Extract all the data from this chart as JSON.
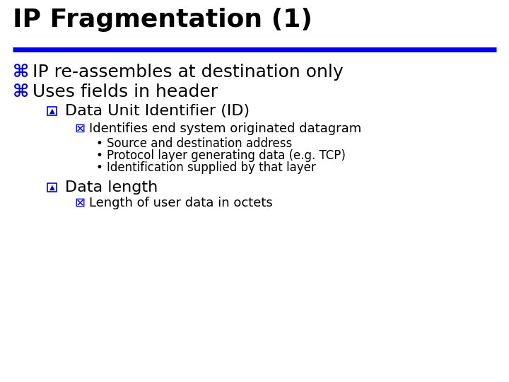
{
  "title": "IP Fragmentation (1)",
  "title_color": "#000000",
  "title_fontsize": 26,
  "line_color": "#0000EE",
  "background_color": "#FFFFFF",
  "main_bullet_color": "#0000EE",
  "main_bullet_fontsize": 18,
  "main_bullet_symbol": "⌘",
  "main_text_color": "#000000",
  "main_text_fontsize": 18,
  "sub1_color": "#0000EE",
  "sub1_fontsize": 16,
  "sub1_symbol": "☒",
  "sub1_text_fontsize": 16,
  "sub2_color": "#0000EE",
  "sub2_fontsize": 13,
  "sub2_symbol": "☒",
  "sub2_text_fontsize": 13,
  "bullet3_color": "#000000",
  "bullet3_fontsize": 12,
  "bullet3_symbol": "•",
  "line1_text": "IP re-assembles at destination only",
  "line2_text": "Uses fields in header",
  "sub1_text": "Data Unit Identifier (ID)",
  "sub2_text": "Identifies end system originated datagram",
  "bullet3_items": [
    "Source and destination address",
    "Protocol layer generating data (e.g. TCP)",
    "Identification supplied by that layer"
  ],
  "sub3_text": "Data length",
  "sub4_text": "Length of user data in octets"
}
